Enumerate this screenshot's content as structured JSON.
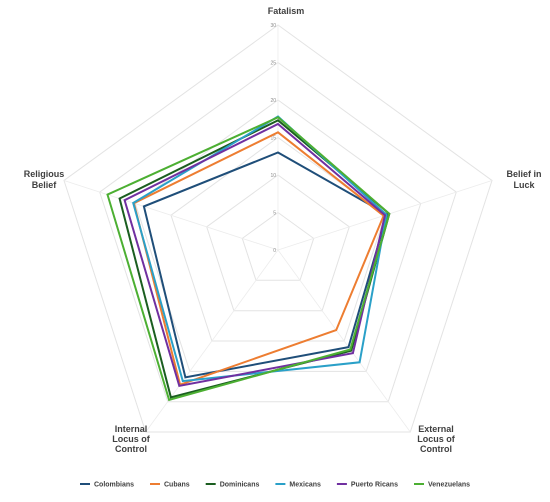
{
  "chart_data": {
    "type": "radar",
    "axes": [
      {
        "label_lines": [
          "Fatalism"
        ]
      },
      {
        "label_lines": [
          "Belief in",
          "Luck"
        ]
      },
      {
        "label_lines": [
          "External",
          "Locus of",
          "Control"
        ]
      },
      {
        "label_lines": [
          "Internal",
          "Locus of",
          "Control"
        ]
      },
      {
        "label_lines": [
          "Religious",
          "Belief"
        ]
      }
    ],
    "range": [
      0,
      30
    ],
    "ticks": [
      0,
      5,
      10,
      15,
      20,
      25,
      30
    ],
    "grid": true,
    "legend_position": "bottom",
    "series": [
      {
        "name": "Colombians",
        "color": "#1f4e79",
        "values": [
          13.0,
          15.3,
          16.0,
          21.0,
          18.8
        ]
      },
      {
        "name": "Cubans",
        "color": "#ed7d31",
        "values": [
          15.7,
          14.8,
          13.2,
          22.2,
          20.2
        ]
      },
      {
        "name": "Dominicans",
        "color": "#1b5e20",
        "values": [
          17.3,
          15.6,
          16.6,
          24.3,
          22.2
        ]
      },
      {
        "name": "Mexicans",
        "color": "#2aa0c8",
        "values": [
          17.8,
          15.2,
          18.5,
          21.6,
          20.3
        ]
      },
      {
        "name": "Puerto Ricans",
        "color": "#7030a0",
        "values": [
          16.8,
          15.0,
          17.0,
          22.4,
          21.5
        ]
      },
      {
        "name": "Venezuelans",
        "color": "#4caf32",
        "values": [
          17.7,
          15.6,
          16.4,
          24.7,
          23.9
        ]
      }
    ]
  }
}
